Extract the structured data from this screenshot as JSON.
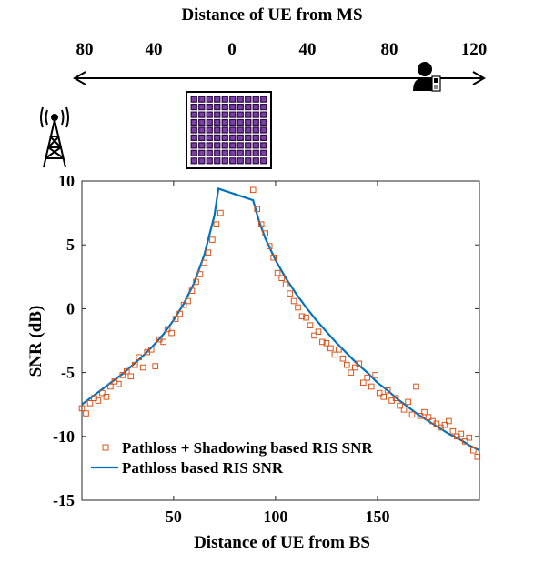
{
  "top_axis": {
    "title": "Distance of UE from MS",
    "ticks": [
      "80",
      "40",
      "0",
      "40",
      "80",
      "120"
    ]
  },
  "icons": {
    "base_station": "cell-tower-icon",
    "ris_panel": "ris-panel-icon",
    "user": "user-phone-icon"
  },
  "colors": {
    "line": "#0072BD",
    "markers": "#D95319"
  },
  "chart_data": {
    "type": "line",
    "xlabel": "Distance of UE from BS",
    "ylabel": "SNR (dB)",
    "xlim": [
      5,
      200
    ],
    "ylim": [
      -15,
      10
    ],
    "xticks": [
      50,
      100,
      150
    ],
    "yticks": [
      10,
      5,
      0,
      -5,
      -10,
      -15
    ],
    "legend_position": "bottom-left",
    "series": [
      {
        "name": "Pathloss + Shadowing based RIS SNR",
        "style": "square-markers",
        "color": "#D95319",
        "x": [
          5,
          7,
          9,
          11,
          13,
          15,
          17,
          19,
          21,
          23,
          25,
          27,
          29,
          31,
          33,
          35,
          37,
          39,
          41,
          43,
          45,
          47,
          49,
          51,
          53,
          55,
          57,
          59,
          61,
          63,
          65,
          67,
          69,
          71,
          73,
          89,
          91,
          93,
          95,
          97,
          99,
          101,
          103,
          105,
          107,
          109,
          111,
          113,
          115,
          117,
          119,
          121,
          123,
          125,
          127,
          129,
          131,
          133,
          135,
          137,
          139,
          141,
          143,
          145,
          147,
          149,
          151,
          153,
          155,
          157,
          159,
          161,
          163,
          165,
          167,
          169,
          171,
          173,
          175,
          177,
          179,
          181,
          183,
          185,
          187,
          189,
          191,
          193,
          195,
          197,
          199
        ],
        "y": [
          -7.8,
          -8.2,
          -7.4,
          -7.0,
          -7.2,
          -6.6,
          -6.9,
          -6.1,
          -5.7,
          -5.9,
          -5.2,
          -4.9,
          -5.3,
          -4.4,
          -3.8,
          -4.6,
          -3.4,
          -3.2,
          -4.5,
          -2.4,
          -2.6,
          -1.6,
          -1.9,
          -0.8,
          -0.4,
          0.3,
          0.6,
          1.4,
          2.1,
          2.7,
          3.6,
          4.4,
          5.4,
          6.6,
          7.5,
          9.3,
          7.8,
          6.6,
          5.9,
          4.9,
          4.0,
          2.8,
          2.4,
          1.9,
          1.2,
          0.6,
          0.1,
          -0.6,
          -0.7,
          -1.3,
          -2.1,
          -1.8,
          -2.6,
          -2.7,
          -3.1,
          -3.6,
          -3.2,
          -3.9,
          -4.4,
          -5.0,
          -4.6,
          -4.3,
          -5.8,
          -5.4,
          -6.1,
          -5.2,
          -6.6,
          -6.9,
          -6.4,
          -7.2,
          -7.0,
          -7.6,
          -7.9,
          -7.3,
          -8.3,
          -6.1,
          -8.4,
          -8.1,
          -8.5,
          -8.8,
          -9.0,
          -9.3,
          -9.1,
          -8.8,
          -9.6,
          -10.0,
          -9.8,
          -10.4,
          -10.1,
          -11.1,
          -11.6
        ]
      },
      {
        "name": "Pathloss based RIS SNR",
        "style": "line",
        "color": "#0072BD",
        "x": [
          5,
          10,
          15,
          20,
          25,
          30,
          35,
          40,
          45,
          50,
          55,
          60,
          65,
          70,
          72,
          89,
          92,
          95,
          100,
          105,
          110,
          115,
          120,
          125,
          130,
          135,
          140,
          145,
          150,
          155,
          160,
          165,
          170,
          175,
          180,
          185,
          190,
          195,
          200
        ],
        "y": [
          -7.5,
          -6.9,
          -6.3,
          -5.7,
          -5.1,
          -4.4,
          -3.7,
          -2.9,
          -2.0,
          -0.9,
          0.4,
          2.0,
          4.2,
          7.3,
          9.4,
          8.5,
          6.8,
          5.5,
          3.8,
          2.4,
          1.2,
          0.1,
          -0.9,
          -1.8,
          -2.7,
          -3.5,
          -4.3,
          -5.0,
          -5.8,
          -6.4,
          -7.1,
          -7.7,
          -8.3,
          -8.8,
          -9.3,
          -9.8,
          -10.2,
          -10.7,
          -11.1
        ]
      }
    ]
  }
}
